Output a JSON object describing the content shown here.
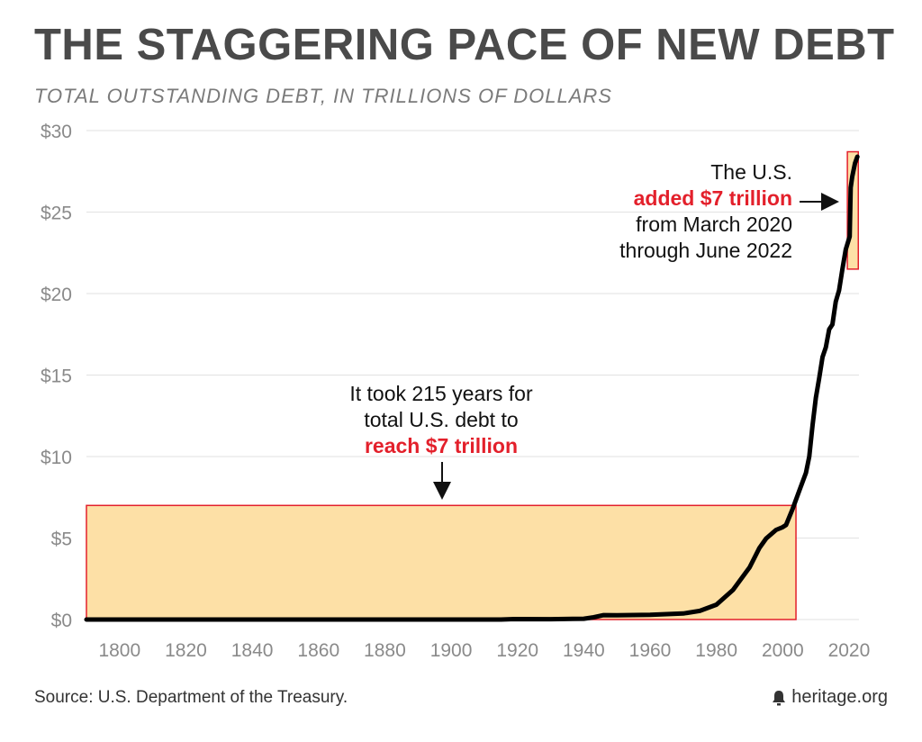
{
  "title": "THE STAGGERING PACE OF NEW DEBT",
  "subtitle": "TOTAL OUTSTANDING DEBT, IN TRILLIONS OF DOLLARS",
  "source": "Source: U.S. Department of the Treasury.",
  "brand": "heritage.org",
  "brand_icon": "bell-icon",
  "colors": {
    "highlight_fill": "#fde0a6",
    "highlight_border": "#e3202b",
    "line": "#000000",
    "accent_text": "#e3202b",
    "grid": "#e2e2e2",
    "tick_text": "#8a8a8a"
  },
  "annotations": {
    "left": {
      "line1": "It took 215 years for",
      "line2": "total U.S. debt to",
      "highlight": "reach $7 trillion"
    },
    "right": {
      "line1": "The U.S.",
      "highlight": "added $7 trillion",
      "line3": "from March 2020",
      "line4": "through June 2022"
    }
  },
  "chart_data": {
    "type": "line",
    "title": "THE STAGGERING PACE OF NEW DEBT",
    "subtitle": "TOTAL OUTSTANDING DEBT, IN TRILLIONS OF DOLLARS",
    "xlabel": "",
    "ylabel": "",
    "xlim": [
      1790,
      2023
    ],
    "ylim": [
      0,
      30
    ],
    "x_ticks": [
      1800,
      1820,
      1840,
      1860,
      1880,
      1900,
      1920,
      1940,
      1960,
      1980,
      2000,
      2020
    ],
    "y_ticks": [
      0,
      5,
      10,
      15,
      20,
      25,
      30
    ],
    "y_tick_labels": [
      "$0",
      "$5",
      "$10",
      "$15",
      "$20",
      "$25",
      "$30"
    ],
    "grid": "horizontal",
    "legend": "none",
    "series": [
      {
        "x": [
          1790,
          1800,
          1850,
          1900,
          1915,
          1919,
          1930,
          1940,
          1943,
          1946,
          1950,
          1960,
          1970,
          1975,
          1980,
          1985,
          1990,
          1993,
          1995,
          1998,
          2000,
          2001,
          2003,
          2005,
          2007,
          2008,
          2009,
          2010,
          2011,
          2012,
          2013,
          2014,
          2015,
          2016,
          2017,
          2018,
          2019,
          2020.2,
          2020.5,
          2021,
          2021.8,
          2022.5
        ],
        "y": [
          0.0,
          0.0,
          0.0,
          0.0,
          0.0,
          0.03,
          0.02,
          0.05,
          0.14,
          0.27,
          0.26,
          0.29,
          0.37,
          0.53,
          0.91,
          1.82,
          3.2,
          4.4,
          4.97,
          5.5,
          5.67,
          5.8,
          6.8,
          7.9,
          9.0,
          10.0,
          11.9,
          13.6,
          14.8,
          16.1,
          16.7,
          17.8,
          18.1,
          19.5,
          20.2,
          21.5,
          22.7,
          23.5,
          26.5,
          27.2,
          28.0,
          28.4
        ]
      }
    ],
    "highlights": [
      {
        "x": [
          1790,
          2004
        ],
        "y": [
          0,
          7
        ]
      },
      {
        "x": [
          2019.5,
          2022.8
        ],
        "y": [
          21.5,
          28.7
        ]
      }
    ]
  }
}
